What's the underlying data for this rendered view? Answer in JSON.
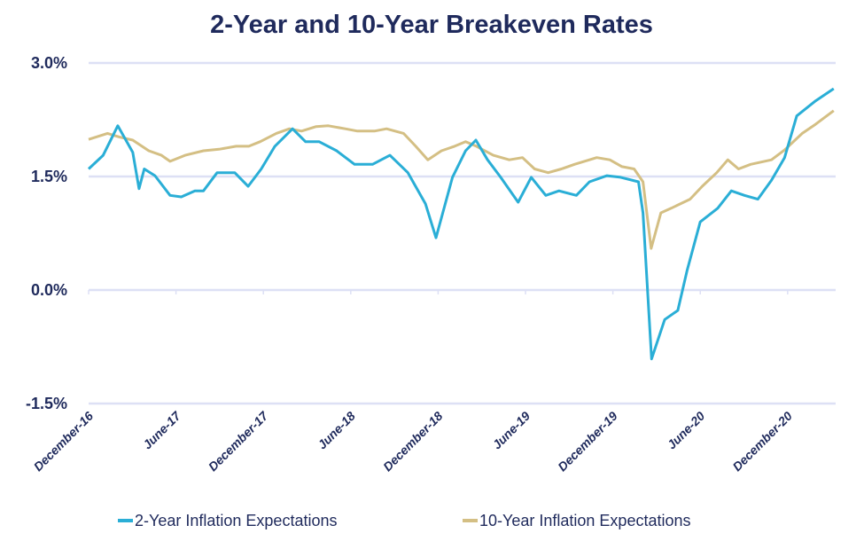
{
  "chart_data": {
    "type": "line",
    "title": "2-Year and 10-Year Breakeven Rates",
    "xlabel": "",
    "ylabel": "",
    "ylim": [
      -1.5,
      3.0
    ],
    "xlim": [
      "2016-12-01",
      "2021-03-10"
    ],
    "yticks": [
      {
        "value": 3.0,
        "label": "3.0%"
      },
      {
        "value": 1.5,
        "label": "1.5%"
      },
      {
        "value": 0.0,
        "label": "0.0%"
      },
      {
        "value": -1.5,
        "label": "-1.5%"
      }
    ],
    "xticks": [
      {
        "date": "2016-12-01",
        "label": "December-16"
      },
      {
        "date": "2017-06-01",
        "label": "June-17"
      },
      {
        "date": "2017-12-01",
        "label": "December-17"
      },
      {
        "date": "2018-06-01",
        "label": "June-18"
      },
      {
        "date": "2018-12-01",
        "label": "December-18"
      },
      {
        "date": "2019-06-01",
        "label": "June-19"
      },
      {
        "date": "2019-12-01",
        "label": "December-19"
      },
      {
        "date": "2020-06-01",
        "label": "June-20"
      },
      {
        "date": "2020-12-01",
        "label": "December-20"
      }
    ],
    "grid": "horizontal",
    "legend_position": "bottom",
    "series": [
      {
        "name": "2-Year Inflation Expectations",
        "color": "#2aaed6",
        "points": [
          [
            "2016-12-01",
            1.6
          ],
          [
            "2017-01-01",
            1.78
          ],
          [
            "2017-02-01",
            2.17
          ],
          [
            "2017-03-02",
            1.82
          ],
          [
            "2017-03-15",
            1.34
          ],
          [
            "2017-03-26",
            1.6
          ],
          [
            "2017-04-18",
            1.51
          ],
          [
            "2017-05-19",
            1.25
          ],
          [
            "2017-06-12",
            1.23
          ],
          [
            "2017-07-10",
            1.31
          ],
          [
            "2017-07-28",
            1.31
          ],
          [
            "2017-08-26",
            1.55
          ],
          [
            "2017-10-02",
            1.55
          ],
          [
            "2017-10-30",
            1.37
          ],
          [
            "2017-11-27",
            1.6
          ],
          [
            "2017-12-25",
            1.9
          ],
          [
            "2018-02-01",
            2.13
          ],
          [
            "2018-02-28",
            1.96
          ],
          [
            "2018-03-26",
            1.96
          ],
          [
            "2018-05-02",
            1.84
          ],
          [
            "2018-06-09",
            1.66
          ],
          [
            "2018-07-16",
            1.66
          ],
          [
            "2018-08-22",
            1.78
          ],
          [
            "2018-09-29",
            1.55
          ],
          [
            "2018-11-05",
            1.14
          ],
          [
            "2018-11-27",
            0.69
          ],
          [
            "2018-12-31",
            1.49
          ],
          [
            "2019-01-28",
            1.84
          ],
          [
            "2019-02-19",
            1.98
          ],
          [
            "2019-03-13",
            1.72
          ],
          [
            "2019-04-10",
            1.49
          ],
          [
            "2019-05-16",
            1.16
          ],
          [
            "2019-06-13",
            1.49
          ],
          [
            "2019-07-13",
            1.25
          ],
          [
            "2019-08-10",
            1.31
          ],
          [
            "2019-09-16",
            1.25
          ],
          [
            "2019-10-13",
            1.43
          ],
          [
            "2019-11-19",
            1.51
          ],
          [
            "2019-12-17",
            1.49
          ],
          [
            "2020-01-24",
            1.43
          ],
          [
            "2020-02-03",
            1.02
          ],
          [
            "2020-02-21",
            -0.91
          ],
          [
            "2020-03-18",
            -0.39
          ],
          [
            "2020-04-15",
            -0.27
          ],
          [
            "2020-05-04",
            0.26
          ],
          [
            "2020-06-01",
            0.9
          ],
          [
            "2020-07-07",
            1.08
          ],
          [
            "2020-08-05",
            1.31
          ],
          [
            "2020-09-02",
            1.25
          ],
          [
            "2020-09-30",
            1.2
          ],
          [
            "2020-10-28",
            1.45
          ],
          [
            "2020-11-25",
            1.75
          ],
          [
            "2020-12-20",
            2.3
          ],
          [
            "2021-01-29",
            2.5
          ],
          [
            "2021-03-06",
            2.66
          ]
        ]
      },
      {
        "name": "10-Year Inflation Expectations",
        "color": "#d4bf84",
        "points": [
          [
            "2016-12-01",
            1.99
          ],
          [
            "2017-01-10",
            2.07
          ],
          [
            "2017-02-05",
            2.02
          ],
          [
            "2017-03-02",
            1.98
          ],
          [
            "2017-04-05",
            1.84
          ],
          [
            "2017-05-01",
            1.78
          ],
          [
            "2017-05-19",
            1.7
          ],
          [
            "2017-06-20",
            1.78
          ],
          [
            "2017-07-28",
            1.84
          ],
          [
            "2017-08-30",
            1.86
          ],
          [
            "2017-10-05",
            1.9
          ],
          [
            "2017-11-01",
            1.9
          ],
          [
            "2017-11-25",
            1.96
          ],
          [
            "2017-12-28",
            2.07
          ],
          [
            "2018-01-25",
            2.13
          ],
          [
            "2018-02-20",
            2.1
          ],
          [
            "2018-03-20",
            2.16
          ],
          [
            "2018-04-15",
            2.17
          ],
          [
            "2018-05-20",
            2.13
          ],
          [
            "2018-06-15",
            2.1
          ],
          [
            "2018-07-20",
            2.1
          ],
          [
            "2018-08-15",
            2.13
          ],
          [
            "2018-09-20",
            2.07
          ],
          [
            "2018-10-15",
            1.9
          ],
          [
            "2018-11-10",
            1.72
          ],
          [
            "2018-12-08",
            1.84
          ],
          [
            "2019-01-05",
            1.9
          ],
          [
            "2019-01-28",
            1.96
          ],
          [
            "2019-02-20",
            1.9
          ],
          [
            "2019-03-25",
            1.78
          ],
          [
            "2019-04-28",
            1.72
          ],
          [
            "2019-05-25",
            1.75
          ],
          [
            "2019-06-20",
            1.6
          ],
          [
            "2019-07-18",
            1.55
          ],
          [
            "2019-08-15",
            1.6
          ],
          [
            "2019-09-12",
            1.66
          ],
          [
            "2019-10-28",
            1.75
          ],
          [
            "2019-11-25",
            1.72
          ],
          [
            "2019-12-20",
            1.63
          ],
          [
            "2020-01-15",
            1.6
          ],
          [
            "2020-02-03",
            1.43
          ],
          [
            "2020-02-20",
            0.55
          ],
          [
            "2020-03-10",
            1.02
          ],
          [
            "2020-04-01",
            1.08
          ],
          [
            "2020-05-10",
            1.2
          ],
          [
            "2020-06-05",
            1.37
          ],
          [
            "2020-07-05",
            1.55
          ],
          [
            "2020-07-28",
            1.72
          ],
          [
            "2020-08-20",
            1.6
          ],
          [
            "2020-09-15",
            1.66
          ],
          [
            "2020-10-28",
            1.72
          ],
          [
            "2020-11-25",
            1.85
          ],
          [
            "2021-01-01",
            2.07
          ],
          [
            "2021-01-29",
            2.19
          ],
          [
            "2021-03-06",
            2.37
          ]
        ]
      }
    ]
  },
  "colors": {
    "text": "#1f2a5c",
    "grid": "#dde0f5"
  }
}
